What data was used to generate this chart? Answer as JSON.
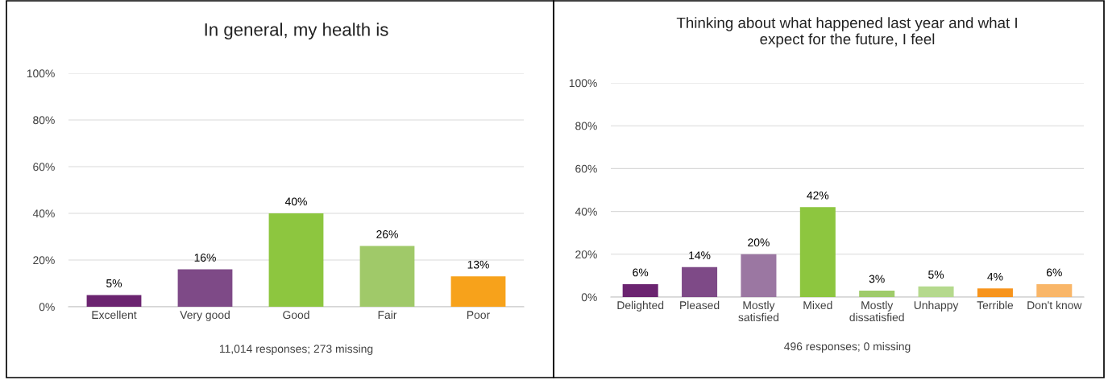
{
  "chart_data": [
    {
      "type": "bar",
      "title": "In general, my health is",
      "categories": [
        "Excellent",
        "Very good",
        "Good",
        "Fair",
        "Poor"
      ],
      "values": [
        5,
        16,
        40,
        26,
        13
      ],
      "colors": [
        "#6b2470",
        "#7e4a87",
        "#8dc63f",
        "#a0c969",
        "#f7a21b"
      ],
      "value_labels": [
        "5%",
        "16%",
        "40%",
        "26%",
        "13%"
      ],
      "ylim": [
        0,
        100
      ],
      "yticks": [
        {
          "value": 0,
          "label": "0%"
        },
        {
          "value": 20,
          "label": "20%"
        },
        {
          "value": 40,
          "label": "40%"
        },
        {
          "value": 60,
          "label": "60%"
        },
        {
          "value": 80,
          "label": "80%"
        },
        {
          "value": 100,
          "label": "100%"
        }
      ],
      "grid": "y",
      "annotations": [
        "11,014 responses; 273 missing"
      ]
    },
    {
      "type": "bar",
      "title": "Thinking about what happened last year and what I\nexpect for the future, I feel",
      "categories": [
        "Delighted",
        "Pleased",
        "Mostly\nsatisfied",
        "Mixed",
        "Mostly\ndissatisfied",
        "Unhappy",
        "Terrible",
        "Don't know"
      ],
      "values": [
        6,
        14,
        20,
        42,
        3,
        5,
        4,
        6
      ],
      "colors": [
        "#6b2470",
        "#7e4a87",
        "#9b77a2",
        "#8dc63f",
        "#9fcb6a",
        "#b5d98d",
        "#f7941d",
        "#f9b668"
      ],
      "value_labels": [
        "6%",
        "14%",
        "20%",
        "42%",
        "3%",
        "5%",
        "4%",
        "6%"
      ],
      "ylim": [
        0,
        100
      ],
      "yticks": [
        {
          "value": 0,
          "label": "0%"
        },
        {
          "value": 20,
          "label": "20%"
        },
        {
          "value": 40,
          "label": "40%"
        },
        {
          "value": 60,
          "label": "60%"
        },
        {
          "value": 80,
          "label": "80%"
        },
        {
          "value": 100,
          "label": "100%"
        }
      ],
      "grid": "y",
      "annotations": [
        "496 responses; 0 missing"
      ]
    }
  ]
}
